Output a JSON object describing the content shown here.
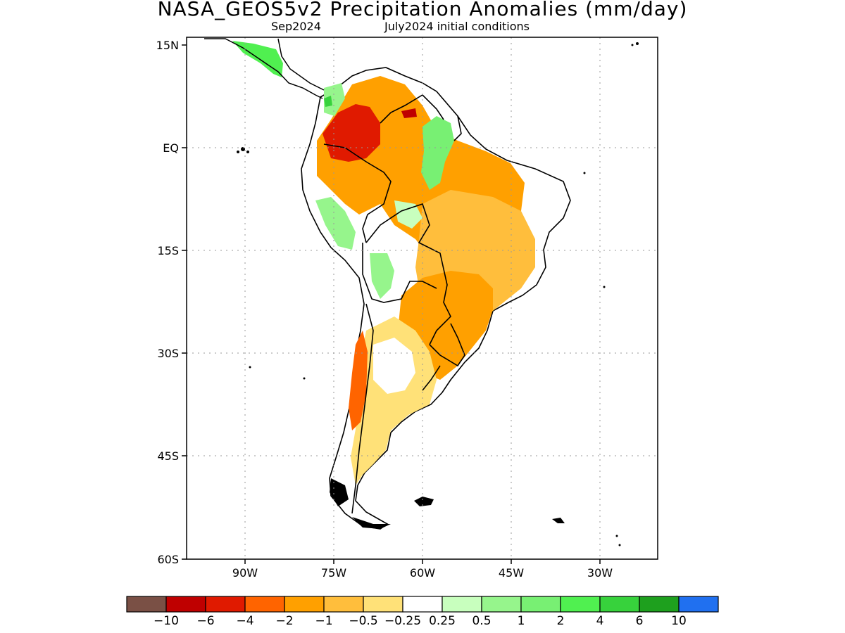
{
  "title": "NASA_GEOS5v2 Precipitation Anomalies (mm/day)",
  "subtitle_left": "Sep2024",
  "subtitle_right": "July2024 initial conditions",
  "axes": {
    "lat_ticks": [
      "15N",
      "EQ",
      "15S",
      "30S",
      "45S",
      "60S"
    ],
    "lon_ticks": [
      "90W",
      "75W",
      "60W",
      "45W",
      "30W"
    ],
    "lat_range": [
      -60,
      15
    ],
    "lon_range": [
      -100,
      -20
    ]
  },
  "colorbar": {
    "colors": [
      "#7a5045",
      "#bf0000",
      "#e01a00",
      "#ff6400",
      "#ffa000",
      "#ffbe3c",
      "#ffe178",
      "#ffffff",
      "#c8ffbe",
      "#96f58c",
      "#78f073",
      "#50f050",
      "#37d23c",
      "#1ea01e",
      "#2070f0"
    ],
    "labels": [
      "−10",
      "−6",
      "−4",
      "−2",
      "−1",
      "−0.5",
      "−0.25",
      "0.25",
      "0.5",
      "1",
      "2",
      "4",
      "6",
      "10"
    ]
  }
}
